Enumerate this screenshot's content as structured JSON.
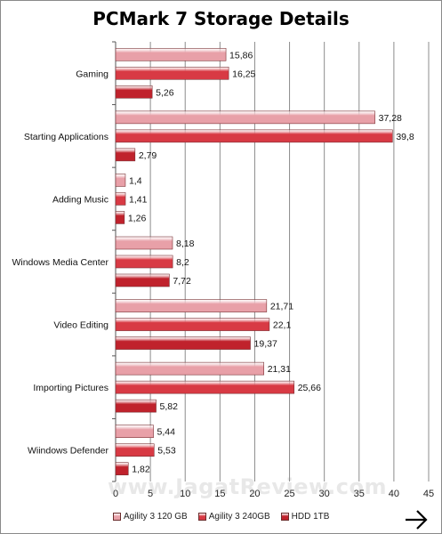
{
  "chart_data": {
    "type": "bar",
    "orientation": "horizontal",
    "title": "PCMark 7 Storage Details",
    "categories": [
      "Gaming",
      "Starting Applications",
      "Adding Music",
      "Windows Media Center",
      "Video Editing",
      "Importing Pictures",
      "Wiindows Defender"
    ],
    "series": [
      {
        "name": "Agility 3 120 GB",
        "color": "#e8a0a8",
        "values": [
          15.86,
          37.28,
          1.4,
          8.18,
          21.71,
          21.31,
          5.44
        ],
        "labels": [
          "15,86",
          "37,28",
          "1,4",
          "8,18",
          "21,71",
          "21,31",
          "5,44"
        ]
      },
      {
        "name": "Agility 3 240GB",
        "color": "#d83a44",
        "values": [
          16.25,
          39.8,
          1.41,
          8.2,
          22.1,
          25.66,
          5.53
        ],
        "labels": [
          "16,25",
          "39,8",
          "1,41",
          "8,2",
          "22,1",
          "25,66",
          "5,53"
        ]
      },
      {
        "name": "HDD 1TB",
        "color": "#c0222c",
        "values": [
          5.26,
          2.79,
          1.26,
          7.72,
          19.37,
          5.82,
          1.82
        ],
        "labels": [
          "5,26",
          "2,79",
          "1,26",
          "7,72",
          "19,37",
          "5,82",
          "1,82"
        ]
      }
    ],
    "xlim": [
      0,
      45
    ],
    "xticks": [
      0,
      5,
      10,
      15,
      20,
      25,
      30,
      35,
      40,
      45
    ],
    "grid": true,
    "legend": "bottom"
  },
  "watermark": "www.JagatReview.com",
  "icons": {
    "next": "arrow-right-icon"
  }
}
